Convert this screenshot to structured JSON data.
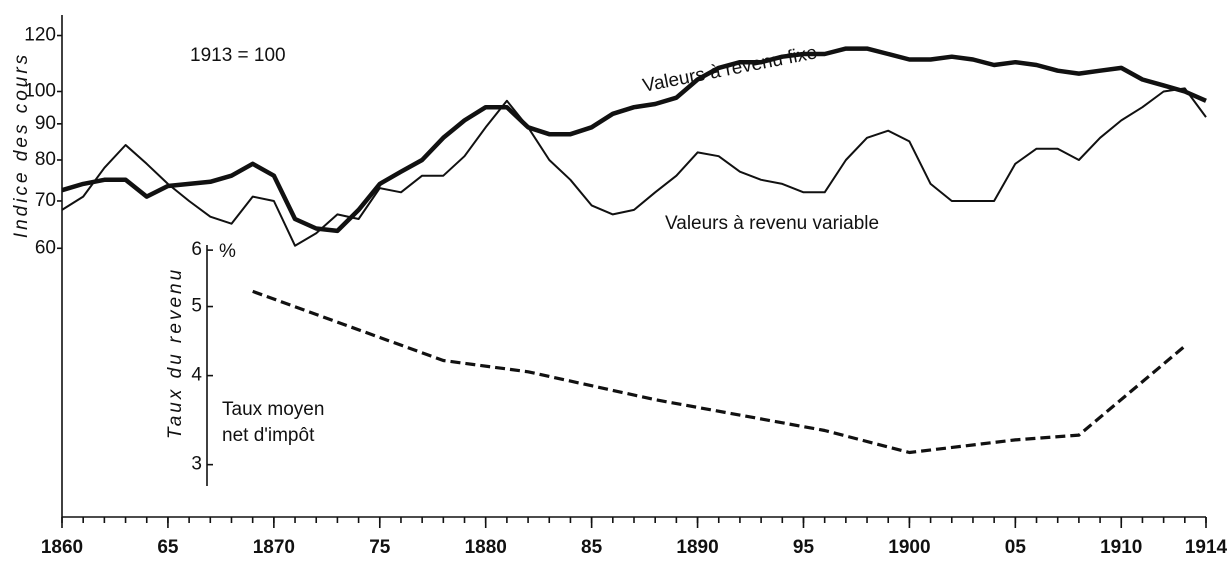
{
  "chart_data": {
    "type": "line",
    "ylabel": "Indice des cours",
    "y2label": "Taux du revenu",
    "y2unit": "%",
    "annotations": [
      "1913 = 100",
      "Taux moyen",
      "net d'impôt"
    ],
    "log_scale": true,
    "xlim": [
      1860,
      1914
    ],
    "xticks": [
      1860,
      {
        "value": 1865,
        "label": "65"
      },
      1870,
      {
        "value": 1875,
        "label": "75"
      },
      1880,
      {
        "value": 1885,
        "label": "85"
      },
      1890,
      {
        "value": 1895,
        "label": "95"
      },
      1900,
      {
        "value": 1905,
        "label": "05"
      },
      1910,
      1914
    ],
    "ylim": [
      25,
      125
    ],
    "yticks": [
      60,
      70,
      80,
      90,
      100,
      120
    ],
    "y2lim": [
      2.8,
      6.1
    ],
    "y2ticks": [
      3,
      4,
      5,
      6
    ],
    "series": [
      {
        "name": "Valeurs à revenu fixe",
        "color": "#111111",
        "x": [
          1860,
          1861,
          1862,
          1863,
          1864,
          1865,
          1866,
          1867,
          1868,
          1869,
          1870,
          1871,
          1872,
          1873,
          1874,
          1875,
          1876,
          1877,
          1878,
          1879,
          1880,
          1881,
          1882,
          1883,
          1884,
          1885,
          1886,
          1887,
          1888,
          1889,
          1890,
          1891,
          1892,
          1893,
          1894,
          1895,
          1896,
          1897,
          1898,
          1899,
          1900,
          1901,
          1902,
          1903,
          1904,
          1905,
          1906,
          1907,
          1908,
          1909,
          1910,
          1911,
          1912,
          1913,
          1914
        ],
        "values": [
          72.5,
          74,
          75,
          75,
          71,
          73.5,
          74,
          74.5,
          76,
          79,
          76,
          66,
          64,
          63.5,
          68,
          74,
          77,
          80,
          86,
          91,
          95,
          95,
          89,
          87,
          87,
          89,
          93,
          95,
          96,
          98,
          104,
          108,
          110,
          110,
          112,
          113,
          113,
          115,
          115,
          113,
          111,
          111,
          112,
          111,
          109,
          110,
          109,
          107,
          106,
          107,
          108,
          104,
          102,
          100,
          97
        ]
      },
      {
        "name": "Valeurs à revenu variable",
        "color": "#111111",
        "x": [
          1860,
          1861,
          1862,
          1863,
          1864,
          1865,
          1866,
          1867,
          1868,
          1869,
          1870,
          1871,
          1872,
          1873,
          1874,
          1875,
          1876,
          1877,
          1878,
          1879,
          1880,
          1881,
          1882,
          1883,
          1884,
          1885,
          1886,
          1887,
          1888,
          1889,
          1890,
          1891,
          1892,
          1893,
          1894,
          1895,
          1896,
          1897,
          1898,
          1899,
          1900,
          1901,
          1902,
          1903,
          1904,
          1905,
          1906,
          1907,
          1908,
          1909,
          1910,
          1911,
          1912,
          1913,
          1914
        ],
        "values": [
          68,
          71,
          78,
          84,
          79,
          74,
          70,
          66.5,
          65,
          71,
          70,
          60.5,
          63,
          67,
          66,
          73,
          72,
          76,
          76,
          81,
          89,
          97,
          89,
          80,
          75,
          69,
          67,
          68,
          72,
          76,
          82,
          81,
          77,
          75,
          74,
          72,
          72,
          80,
          86,
          88,
          85,
          74,
          70,
          70,
          70,
          79,
          83,
          83,
          80,
          86,
          91,
          95,
          100,
          101,
          92
        ]
      },
      {
        "color": "#111111",
        "axis": "y2",
        "dashed": true,
        "x": [
          1869,
          1878,
          1882,
          1888,
          1896,
          1900,
          1905,
          1908,
          1913
        ],
        "values": [
          5.25,
          4.2,
          4.05,
          3.7,
          3.35,
          3.12,
          3.25,
          3.3,
          4.4
        ]
      }
    ]
  }
}
